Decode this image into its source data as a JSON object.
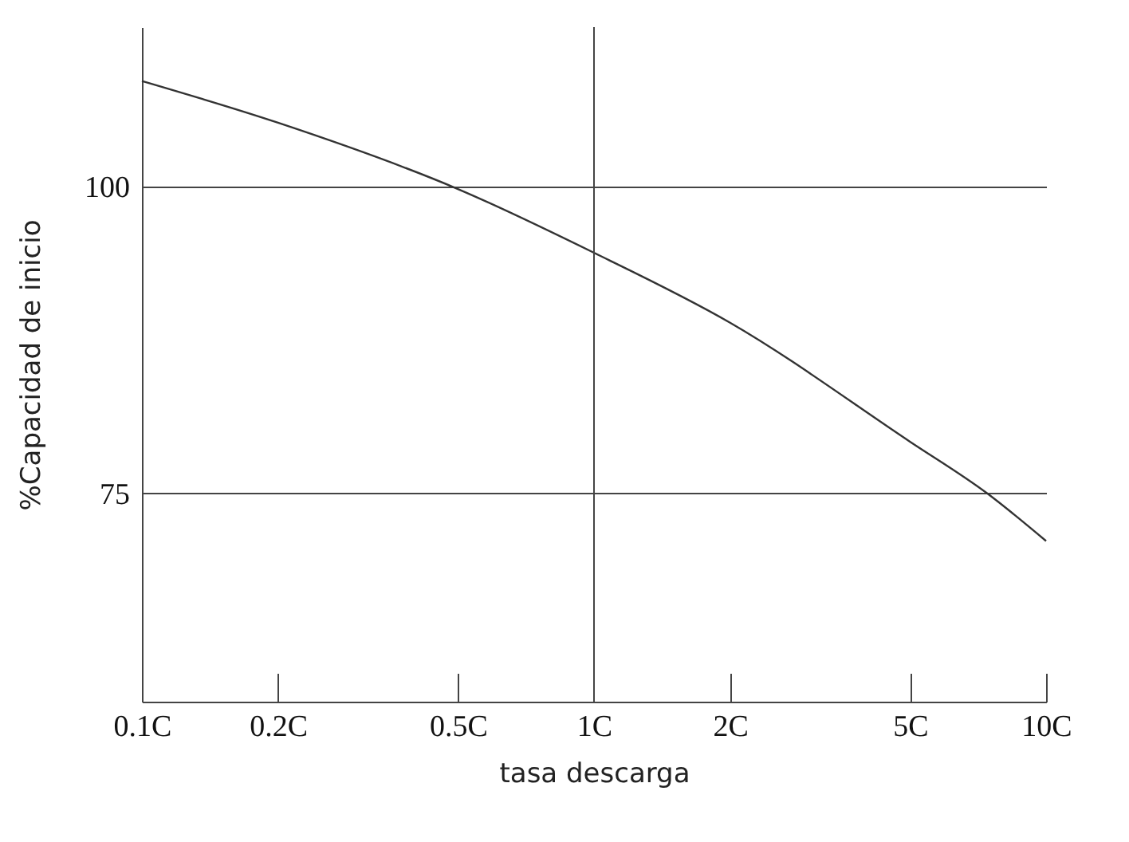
{
  "chart_data": {
    "type": "line",
    "xlabel": "tasa descarga",
    "ylabel": "%Capacidad de inicio",
    "x": [
      0.1,
      0.2,
      0.5,
      1,
      2,
      5,
      7.4,
      10
    ],
    "series": [
      {
        "color": "#333333",
        "values": [
          108.6,
          105.2,
          99.8,
          94.6,
          88.9,
          79.2,
          75,
          71.1
        ]
      }
    ],
    "log": "x",
    "xlim": [
      0.1,
      10
    ],
    "xticks": [
      {
        "value": 0.1,
        "label": "0.1C"
      },
      {
        "value": 0.2,
        "label": "0.2C"
      },
      {
        "value": 0.5,
        "label": "0.5C"
      },
      {
        "value": 1,
        "label": "1C"
      },
      {
        "value": 2,
        "label": "2C"
      },
      {
        "value": 5,
        "label": "5C"
      },
      {
        "value": 10,
        "label": "10C"
      }
    ],
    "ylim": [
      58,
      113
    ],
    "yticks": [
      75,
      100
    ],
    "grid": "y",
    "ref_lines": [
      {
        "axis": "x",
        "value": 1
      }
    ]
  }
}
